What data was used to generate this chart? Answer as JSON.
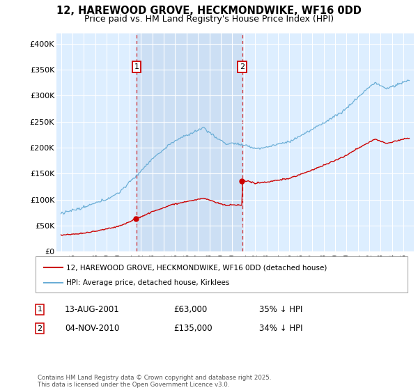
{
  "title": "12, HAREWOOD GROVE, HECKMONDWIKE, WF16 0DD",
  "subtitle": "Price paid vs. HM Land Registry's House Price Index (HPI)",
  "plot_bg_color": "#ddeeff",
  "hpi_color": "#6baed6",
  "price_color": "#cc0000",
  "shade_color": "#c6d9f0",
  "ylim": [
    0,
    420000
  ],
  "yticks": [
    0,
    50000,
    100000,
    150000,
    200000,
    250000,
    300000,
    350000,
    400000
  ],
  "ytick_labels": [
    "£0",
    "£50K",
    "£100K",
    "£150K",
    "£200K",
    "£250K",
    "£300K",
    "£350K",
    "£400K"
  ],
  "sale1_year_f": 2001.625,
  "sale1_price": 63000,
  "sale2_year_f": 2010.875,
  "sale2_price": 135000,
  "annotation1_date": "13-AUG-2001",
  "annotation1_price": "£63,000",
  "annotation1_hpi": "35% ↓ HPI",
  "annotation2_date": "04-NOV-2010",
  "annotation2_price": "£135,000",
  "annotation2_hpi": "34% ↓ HPI",
  "legend_line1": "12, HAREWOOD GROVE, HECKMONDWIKE, WF16 0DD (detached house)",
  "legend_line2": "HPI: Average price, detached house, Kirklees",
  "footer": "Contains HM Land Registry data © Crown copyright and database right 2025.\nThis data is licensed under the Open Government Licence v3.0.",
  "xstart_year": 1995,
  "xend_year": 2025
}
